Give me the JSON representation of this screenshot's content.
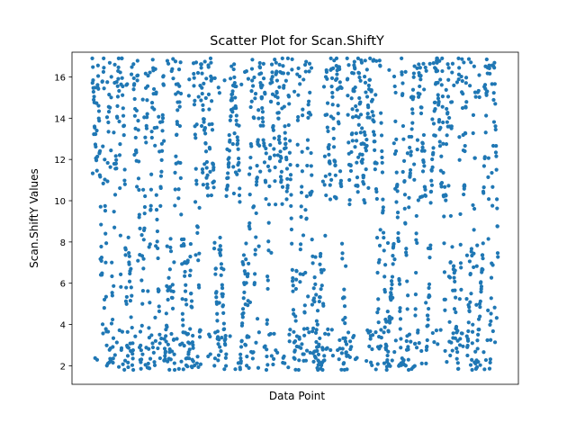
{
  "chart_data": {
    "type": "scatter",
    "title": "Scatter Plot for Scan.ShiftY",
    "xlabel": "Data Point",
    "ylabel": "Scan.ShiftY Values",
    "ylim": [
      1.1,
      17.2
    ],
    "yticks": [
      2,
      4,
      6,
      8,
      10,
      12,
      14,
      16
    ],
    "x_tick_labels_shown": false,
    "grid": false,
    "legend": "none",
    "marker_color": "#1f77b4",
    "series": [
      {
        "values_description": "approx 2000 points, x = index",
        "n_points": 2000,
        "y_min": 1.8,
        "y_max": 16.9,
        "structure": "vertical streaks by data index: blocks alternating between high band (10-17), low band (1.8-8), and full-range sweeps"
      }
    ]
  }
}
